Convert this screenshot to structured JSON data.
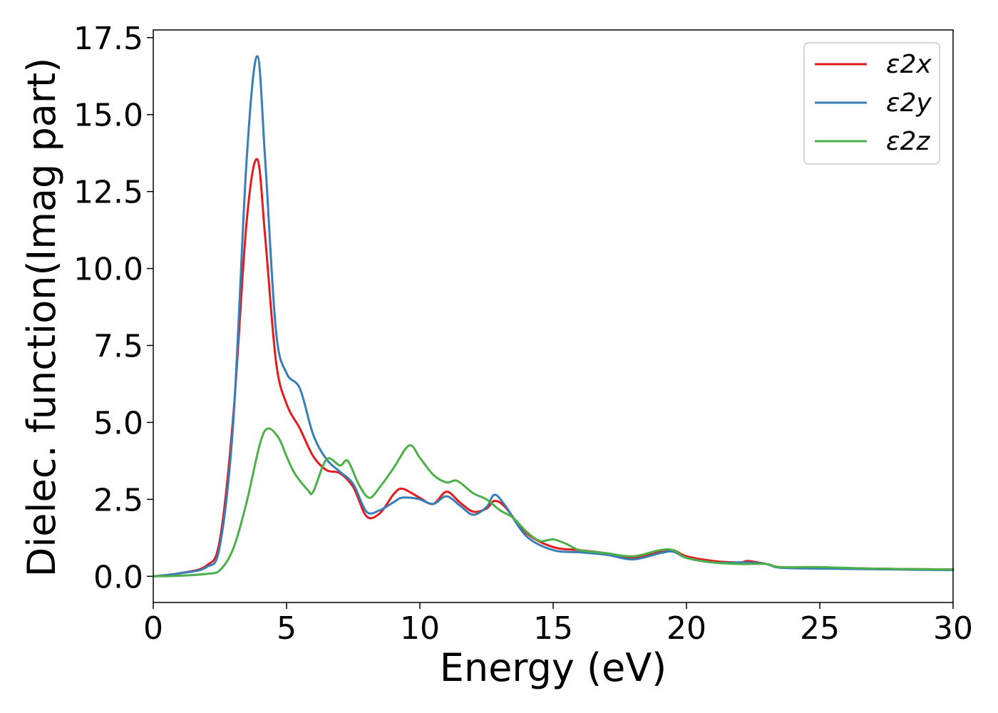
{
  "chart_data": {
    "type": "line",
    "title": "",
    "xlabel": "Energy (eV)",
    "ylabel": "Dielec. function(Imag part)",
    "xlim": [
      0,
      30
    ],
    "ylim": [
      -0.85,
      17.75
    ],
    "xticks": [
      0,
      5,
      10,
      15,
      20,
      25,
      30
    ],
    "xtick_labels": [
      "0",
      "5",
      "10",
      "15",
      "20",
      "25",
      "30"
    ],
    "yticks": [
      0.0,
      2.5,
      5.0,
      7.5,
      10.0,
      12.5,
      15.0,
      17.5
    ],
    "ytick_labels": [
      "0.0",
      "2.5",
      "5.0",
      "7.5",
      "10.0",
      "12.5",
      "15.0",
      "17.5"
    ],
    "grid": false,
    "legend_position": "top-right",
    "series": [
      {
        "name": "ε2x",
        "color": "#e41a1c",
        "x": [
          0,
          1,
          2,
          2.5,
          3,
          3.5,
          3.9,
          4.2,
          4.6,
          5,
          5.5,
          6,
          6.5,
          7,
          7.5,
          8,
          8.5,
          9,
          9.3,
          9.7,
          10,
          10.5,
          11,
          11.5,
          12,
          12.5,
          12.8,
          13.2,
          14,
          15,
          16,
          17,
          18,
          19,
          19.5,
          20,
          21,
          22,
          22.3,
          23,
          23.5,
          25,
          27,
          30
        ],
        "y": [
          0.0,
          0.1,
          0.35,
          1.2,
          5.2,
          11.5,
          13.55,
          11.0,
          7.0,
          5.6,
          4.8,
          3.9,
          3.45,
          3.35,
          2.9,
          1.95,
          2.05,
          2.65,
          2.85,
          2.7,
          2.55,
          2.35,
          2.75,
          2.4,
          2.1,
          2.2,
          2.45,
          2.25,
          1.4,
          0.95,
          0.85,
          0.75,
          0.6,
          0.8,
          0.85,
          0.65,
          0.5,
          0.45,
          0.5,
          0.4,
          0.3,
          0.28,
          0.25,
          0.22
        ]
      },
      {
        "name": "ε2y",
        "color": "#377eb8",
        "x": [
          0,
          1,
          2,
          2.5,
          3,
          3.5,
          3.9,
          4.2,
          4.6,
          5,
          5.5,
          6,
          6.5,
          7,
          7.5,
          8,
          8.5,
          9,
          9.3,
          9.7,
          10,
          10.5,
          11,
          11.5,
          12,
          12.5,
          12.8,
          13.2,
          14,
          15,
          16,
          17,
          18,
          19,
          19.5,
          20,
          21,
          22,
          22.3,
          23,
          23.5,
          25,
          27,
          30
        ],
        "y": [
          0.0,
          0.1,
          0.3,
          1.0,
          5.0,
          13.5,
          16.9,
          13.5,
          8.0,
          6.6,
          6.1,
          4.6,
          3.8,
          3.4,
          3.0,
          2.1,
          2.15,
          2.4,
          2.55,
          2.55,
          2.5,
          2.35,
          2.6,
          2.3,
          2.0,
          2.25,
          2.65,
          2.3,
          1.3,
          0.85,
          0.78,
          0.7,
          0.55,
          0.75,
          0.8,
          0.6,
          0.45,
          0.45,
          0.45,
          0.4,
          0.28,
          0.25,
          0.23,
          0.2
        ]
      },
      {
        "name": "ε2z",
        "color": "#4daf4a",
        "x": [
          0,
          1,
          2,
          2.5,
          3,
          3.5,
          4,
          4.3,
          4.7,
          5,
          5.3,
          5.8,
          6,
          6.5,
          7,
          7.3,
          7.7,
          8.1,
          8.5,
          9,
          9.6,
          10,
          10.5,
          11,
          11.4,
          12,
          12.5,
          13,
          13.5,
          14,
          14.5,
          15,
          15.5,
          16,
          17,
          18,
          19,
          19.5,
          20,
          21,
          22,
          23,
          23.5,
          25,
          27,
          30
        ],
        "y": [
          0.0,
          0.02,
          0.08,
          0.2,
          0.9,
          2.4,
          4.3,
          4.8,
          4.5,
          3.9,
          3.35,
          2.8,
          2.75,
          3.8,
          3.6,
          3.75,
          3.0,
          2.55,
          2.9,
          3.5,
          4.25,
          3.85,
          3.3,
          3.05,
          3.1,
          2.7,
          2.5,
          2.15,
          1.9,
          1.45,
          1.15,
          1.2,
          1.05,
          0.85,
          0.75,
          0.65,
          0.85,
          0.85,
          0.6,
          0.45,
          0.4,
          0.4,
          0.3,
          0.3,
          0.25,
          0.22
        ]
      }
    ]
  }
}
